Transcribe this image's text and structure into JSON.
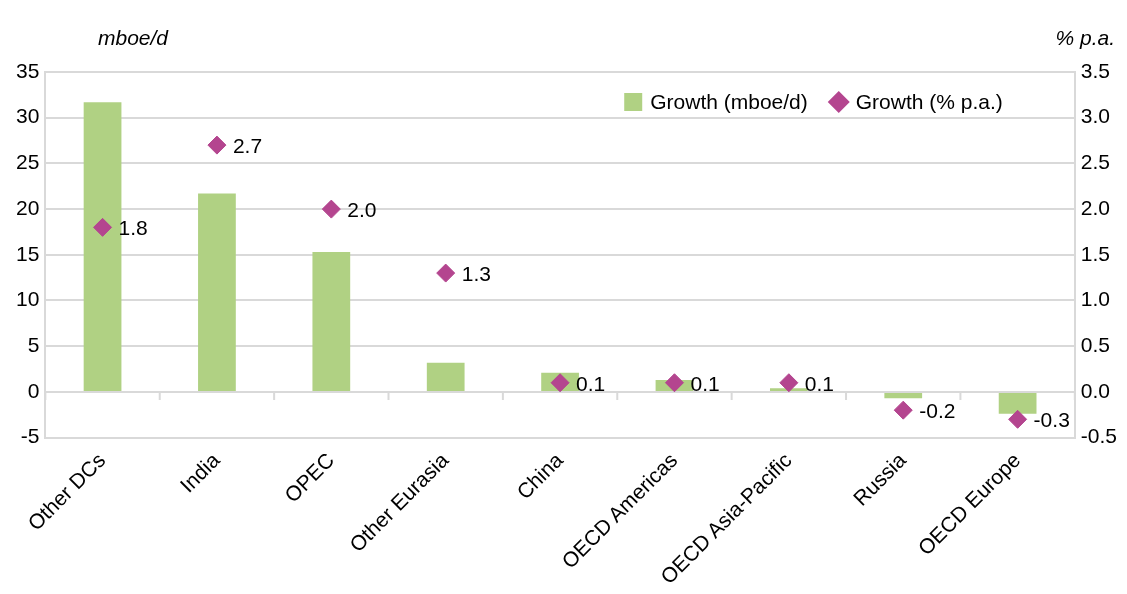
{
  "chart_data": {
    "type": "bar",
    "ylabel": "mboe/d",
    "y2label": "% p.a.",
    "categories": [
      "Other DCs",
      "India",
      "OPEC",
      "Other Eurasia",
      "China",
      "OECD Americas",
      "OECD Asia-Pacific",
      "Russia",
      "OECD Europe"
    ],
    "series": [
      {
        "name": "Growth (mboe/d)",
        "color": "#b0d183",
        "values": [
          31.7,
          21.7,
          15.3,
          3.2,
          2.1,
          1.3,
          0.4,
          -0.7,
          -2.4
        ]
      },
      {
        "name": "Growth (% p.a.)",
        "type": "scatter",
        "axis": "y2",
        "color": "#b4458f",
        "marker": "diamond",
        "values": [
          1.8,
          2.7,
          2.0,
          1.3,
          0.1,
          0.1,
          0.1,
          -0.2,
          -0.3
        ],
        "value_labels": [
          "1.8",
          "2.7",
          "2.0",
          "1.3",
          "0.1",
          "0.1",
          "0.1",
          "-0.2",
          "-0.3"
        ]
      }
    ],
    "ylim": [
      -5,
      35
    ],
    "yticks": [
      -5,
      0,
      5,
      10,
      15,
      20,
      25,
      30,
      35
    ],
    "y2lim": [
      -0.5,
      3.5
    ],
    "y2ticks": [
      {
        "value": -0.5,
        "label": "-0.5"
      },
      {
        "value": 0,
        "label": "0.0"
      },
      {
        "value": 0.5,
        "label": "0.5"
      },
      {
        "value": 1,
        "label": "1.0"
      },
      {
        "value": 1.5,
        "label": "1.5"
      },
      {
        "value": 2,
        "label": "2.0"
      },
      {
        "value": 2.5,
        "label": "2.5"
      },
      {
        "value": 3,
        "label": "3.0"
      },
      {
        "value": 3.5,
        "label": "3.5"
      }
    ],
    "grid": "y",
    "legend": "top right"
  }
}
